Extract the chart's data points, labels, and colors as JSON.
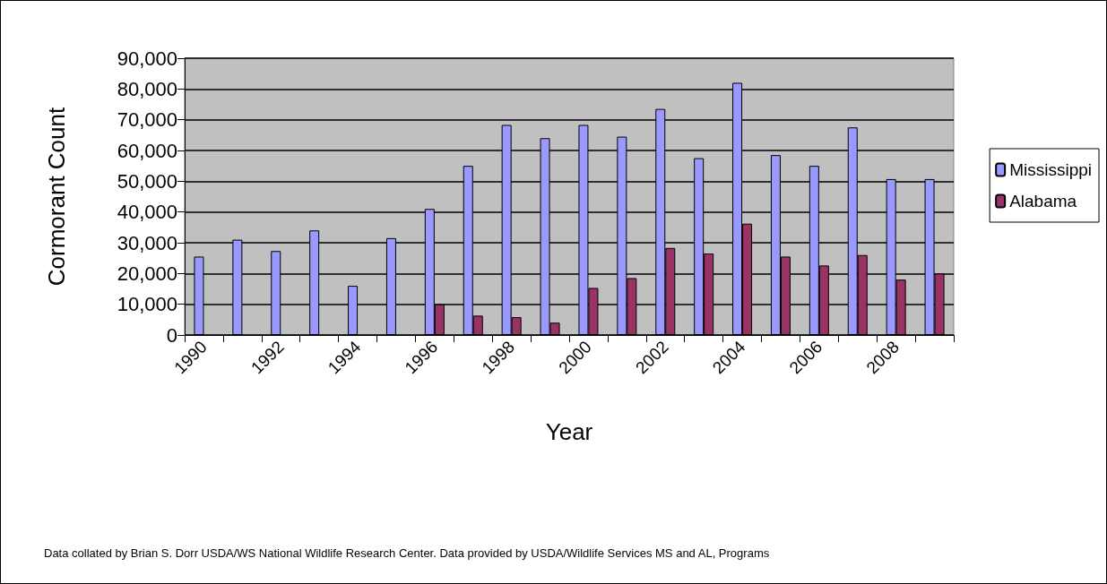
{
  "chart_data": {
    "type": "bar",
    "xlabel": "Year",
    "ylabel": "Cormorant Count",
    "categories": [
      "1990",
      null,
      "1992",
      null,
      "1994",
      null,
      "1996",
      null,
      "1998",
      null,
      "2000",
      null,
      "2002",
      null,
      "2004",
      null,
      "2006",
      null,
      "2008",
      null
    ],
    "series": [
      {
        "name": "Mississippi",
        "color": "#9999ff",
        "values": [
          25500,
          31000,
          27300,
          34000,
          16000,
          31500,
          41000,
          55000,
          68300,
          64000,
          68300,
          64500,
          73500,
          57500,
          82000,
          58500,
          55000,
          67500,
          50700,
          50700
        ]
      },
      {
        "name": "Alabama",
        "color": "#993366",
        "values": [
          null,
          null,
          null,
          null,
          null,
          null,
          10000,
          6300,
          5800,
          4000,
          15300,
          18500,
          28300,
          26500,
          36200,
          25500,
          22600,
          26000,
          18000,
          20000
        ]
      }
    ],
    "ylim": [
      0,
      90000
    ],
    "yticks": [
      0,
      {
        "value": 10000,
        "label": "10,000"
      },
      {
        "value": 20000,
        "label": "20,000"
      },
      {
        "value": 30000,
        "label": "30,000"
      },
      {
        "value": 40000,
        "label": "40,000"
      },
      {
        "value": 50000,
        "label": "50,000"
      },
      {
        "value": 60000,
        "label": "60,000"
      },
      {
        "value": 70000,
        "label": "70,000"
      },
      {
        "value": 80000,
        "label": "80,000"
      },
      {
        "value": 90000,
        "label": "90,000"
      }
    ],
    "grid": "y",
    "legend": "right",
    "annotations": [
      "Data collated by Brian S. Dorr USDA/WS National Wildlife Research Center. Data provided by USDA/Wildlife Services MS and AL, Programs"
    ]
  }
}
